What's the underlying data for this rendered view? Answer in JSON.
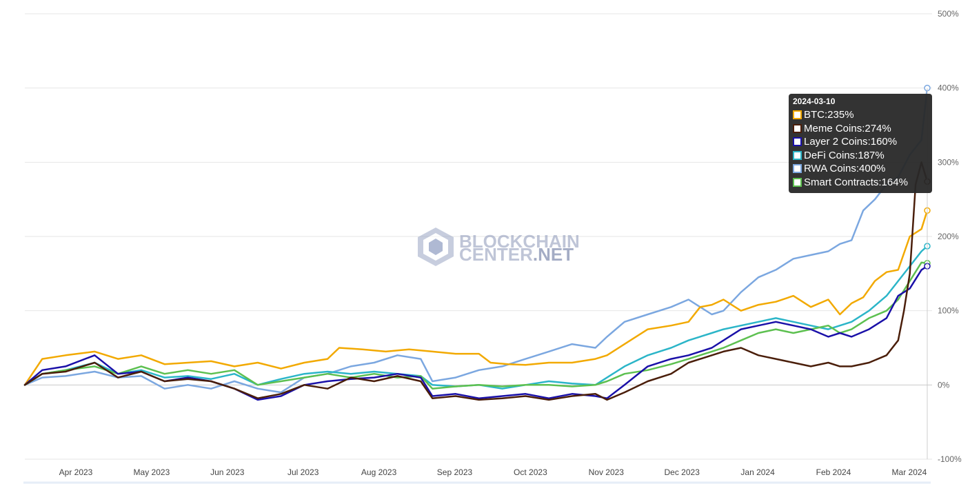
{
  "chart_data": {
    "type": "line",
    "ylim": [
      -100,
      500
    ],
    "y_ticks": [
      "500%",
      "400%",
      "300%",
      "200%",
      "100%",
      "0%",
      "-100%"
    ],
    "x_tick_labels": [
      "Apr 2023",
      "May 2023",
      "Jun 2023",
      "Jul 2023",
      "Aug 2023",
      "Sep 2023",
      "Oct 2023",
      "Nov 2023",
      "Dec 2023",
      "Jan 2024",
      "Feb 2024",
      "Mar 2024"
    ],
    "grid": true,
    "legend": "tooltip",
    "watermark": {
      "line1": "BLOCKCHAIN",
      "line2a": "CENTER",
      "line2b": ".NET"
    },
    "series": [
      {
        "name": "BTC",
        "color": "#F2A900",
        "tooltip_value": "235%",
        "values": [
          [
            0,
            0
          ],
          [
            3,
            35
          ],
          [
            7,
            40
          ],
          [
            12,
            45
          ],
          [
            16,
            35
          ],
          [
            20,
            40
          ],
          [
            24,
            28
          ],
          [
            28,
            30
          ],
          [
            32,
            32
          ],
          [
            36,
            25
          ],
          [
            40,
            30
          ],
          [
            44,
            22
          ],
          [
            48,
            30
          ],
          [
            52,
            35
          ],
          [
            54,
            50
          ],
          [
            58,
            48
          ],
          [
            62,
            45
          ],
          [
            66,
            48
          ],
          [
            70,
            45
          ],
          [
            74,
            42
          ],
          [
            78,
            42
          ],
          [
            80,
            30
          ],
          [
            83,
            28
          ],
          [
            86,
            27
          ],
          [
            90,
            30
          ],
          [
            94,
            30
          ],
          [
            98,
            35
          ],
          [
            100,
            40
          ],
          [
            103,
            55
          ],
          [
            107,
            75
          ],
          [
            111,
            80
          ],
          [
            114,
            85
          ],
          [
            116,
            105
          ],
          [
            118,
            108
          ],
          [
            120,
            115
          ],
          [
            123,
            100
          ],
          [
            126,
            108
          ],
          [
            129,
            112
          ],
          [
            132,
            120
          ],
          [
            135,
            105
          ],
          [
            138,
            115
          ],
          [
            140,
            95
          ],
          [
            142,
            110
          ],
          [
            144,
            118
          ],
          [
            146,
            140
          ],
          [
            148,
            152
          ],
          [
            150,
            155
          ],
          [
            152,
            200
          ],
          [
            154,
            210
          ],
          [
            155,
            235
          ]
        ]
      },
      {
        "name": "Meme Coins",
        "color": "#4A1E0A",
        "tooltip_value": "274%",
        "values": [
          [
            0,
            0
          ],
          [
            3,
            15
          ],
          [
            7,
            18
          ],
          [
            12,
            30
          ],
          [
            16,
            10
          ],
          [
            20,
            18
          ],
          [
            24,
            5
          ],
          [
            28,
            8
          ],
          [
            32,
            5
          ],
          [
            36,
            -5
          ],
          [
            40,
            -18
          ],
          [
            44,
            -12
          ],
          [
            48,
            0
          ],
          [
            52,
            -5
          ],
          [
            56,
            10
          ],
          [
            60,
            5
          ],
          [
            64,
            12
          ],
          [
            68,
            5
          ],
          [
            70,
            -18
          ],
          [
            74,
            -15
          ],
          [
            78,
            -20
          ],
          [
            82,
            -18
          ],
          [
            86,
            -15
          ],
          [
            90,
            -20
          ],
          [
            94,
            -15
          ],
          [
            98,
            -12
          ],
          [
            100,
            -20
          ],
          [
            103,
            -10
          ],
          [
            107,
            5
          ],
          [
            111,
            15
          ],
          [
            114,
            30
          ],
          [
            118,
            40
          ],
          [
            120,
            45
          ],
          [
            123,
            50
          ],
          [
            126,
            40
          ],
          [
            129,
            35
          ],
          [
            132,
            30
          ],
          [
            135,
            25
          ],
          [
            138,
            30
          ],
          [
            140,
            25
          ],
          [
            142,
            25
          ],
          [
            145,
            30
          ],
          [
            148,
            40
          ],
          [
            150,
            60
          ],
          [
            151,
            100
          ],
          [
            152,
            150
          ],
          [
            153,
            270
          ],
          [
            154,
            300
          ],
          [
            155,
            274
          ]
        ]
      },
      {
        "name": "Layer 2 Coins",
        "color": "#1A10A8",
        "tooltip_value": "160%",
        "values": [
          [
            0,
            0
          ],
          [
            3,
            20
          ],
          [
            7,
            25
          ],
          [
            12,
            40
          ],
          [
            16,
            15
          ],
          [
            20,
            18
          ],
          [
            24,
            5
          ],
          [
            28,
            10
          ],
          [
            32,
            5
          ],
          [
            36,
            -5
          ],
          [
            40,
            -20
          ],
          [
            44,
            -15
          ],
          [
            48,
            0
          ],
          [
            52,
            5
          ],
          [
            56,
            8
          ],
          [
            60,
            10
          ],
          [
            64,
            15
          ],
          [
            68,
            10
          ],
          [
            70,
            -15
          ],
          [
            74,
            -12
          ],
          [
            78,
            -18
          ],
          [
            82,
            -15
          ],
          [
            86,
            -12
          ],
          [
            90,
            -18
          ],
          [
            94,
            -12
          ],
          [
            98,
            -15
          ],
          [
            100,
            -18
          ],
          [
            103,
            0
          ],
          [
            107,
            25
          ],
          [
            111,
            35
          ],
          [
            114,
            40
          ],
          [
            118,
            50
          ],
          [
            120,
            60
          ],
          [
            123,
            75
          ],
          [
            126,
            80
          ],
          [
            129,
            85
          ],
          [
            132,
            80
          ],
          [
            135,
            75
          ],
          [
            138,
            65
          ],
          [
            140,
            70
          ],
          [
            142,
            65
          ],
          [
            145,
            75
          ],
          [
            148,
            90
          ],
          [
            150,
            120
          ],
          [
            152,
            130
          ],
          [
            154,
            155
          ],
          [
            155,
            160
          ]
        ]
      },
      {
        "name": "DeFi Coins",
        "color": "#2BB5C8",
        "tooltip_value": "187%",
        "values": [
          [
            0,
            0
          ],
          [
            3,
            15
          ],
          [
            7,
            20
          ],
          [
            12,
            30
          ],
          [
            16,
            15
          ],
          [
            20,
            20
          ],
          [
            24,
            10
          ],
          [
            28,
            12
          ],
          [
            32,
            8
          ],
          [
            36,
            15
          ],
          [
            40,
            0
          ],
          [
            44,
            8
          ],
          [
            48,
            15
          ],
          [
            52,
            18
          ],
          [
            56,
            15
          ],
          [
            60,
            18
          ],
          [
            64,
            15
          ],
          [
            68,
            12
          ],
          [
            70,
            0
          ],
          [
            74,
            -2
          ],
          [
            78,
            0
          ],
          [
            82,
            -5
          ],
          [
            86,
            0
          ],
          [
            90,
            5
          ],
          [
            94,
            2
          ],
          [
            98,
            0
          ],
          [
            100,
            10
          ],
          [
            103,
            25
          ],
          [
            107,
            40
          ],
          [
            111,
            50
          ],
          [
            114,
            60
          ],
          [
            118,
            70
          ],
          [
            120,
            75
          ],
          [
            123,
            80
          ],
          [
            126,
            85
          ],
          [
            129,
            90
          ],
          [
            132,
            85
          ],
          [
            135,
            80
          ],
          [
            138,
            75
          ],
          [
            140,
            80
          ],
          [
            142,
            85
          ],
          [
            145,
            100
          ],
          [
            148,
            120
          ],
          [
            150,
            140
          ],
          [
            152,
            160
          ],
          [
            154,
            180
          ],
          [
            155,
            187
          ]
        ]
      },
      {
        "name": "RWA Coins",
        "color": "#7BA7E0",
        "tooltip_value": "400%",
        "values": [
          [
            0,
            0
          ],
          [
            3,
            10
          ],
          [
            7,
            12
          ],
          [
            12,
            18
          ],
          [
            16,
            10
          ],
          [
            20,
            12
          ],
          [
            24,
            -5
          ],
          [
            28,
            0
          ],
          [
            32,
            -5
          ],
          [
            36,
            5
          ],
          [
            40,
            -5
          ],
          [
            44,
            -10
          ],
          [
            48,
            10
          ],
          [
            52,
            15
          ],
          [
            56,
            25
          ],
          [
            60,
            30
          ],
          [
            64,
            40
          ],
          [
            68,
            35
          ],
          [
            70,
            5
          ],
          [
            74,
            10
          ],
          [
            78,
            20
          ],
          [
            82,
            25
          ],
          [
            86,
            35
          ],
          [
            90,
            45
          ],
          [
            94,
            55
          ],
          [
            98,
            50
          ],
          [
            100,
            65
          ],
          [
            103,
            85
          ],
          [
            107,
            95
          ],
          [
            111,
            105
          ],
          [
            114,
            115
          ],
          [
            116,
            105
          ],
          [
            118,
            95
          ],
          [
            120,
            100
          ],
          [
            123,
            125
          ],
          [
            126,
            145
          ],
          [
            129,
            155
          ],
          [
            132,
            170
          ],
          [
            135,
            175
          ],
          [
            138,
            180
          ],
          [
            140,
            190
          ],
          [
            142,
            195
          ],
          [
            144,
            235
          ],
          [
            146,
            250
          ],
          [
            148,
            270
          ],
          [
            150,
            280
          ],
          [
            152,
            310
          ],
          [
            154,
            330
          ],
          [
            155,
            400
          ]
        ]
      },
      {
        "name": "Smart Contracts",
        "color": "#5DC050",
        "tooltip_value": "164%",
        "values": [
          [
            0,
            0
          ],
          [
            3,
            15
          ],
          [
            7,
            20
          ],
          [
            12,
            25
          ],
          [
            16,
            15
          ],
          [
            20,
            25
          ],
          [
            24,
            15
          ],
          [
            28,
            20
          ],
          [
            32,
            15
          ],
          [
            36,
            20
          ],
          [
            40,
            0
          ],
          [
            44,
            5
          ],
          [
            48,
            10
          ],
          [
            52,
            15
          ],
          [
            56,
            10
          ],
          [
            60,
            15
          ],
          [
            64,
            10
          ],
          [
            68,
            12
          ],
          [
            70,
            -5
          ],
          [
            74,
            -2
          ],
          [
            78,
            0
          ],
          [
            82,
            -2
          ],
          [
            86,
            0
          ],
          [
            90,
            0
          ],
          [
            94,
            -2
          ],
          [
            98,
            0
          ],
          [
            100,
            5
          ],
          [
            103,
            15
          ],
          [
            107,
            20
          ],
          [
            111,
            28
          ],
          [
            114,
            35
          ],
          [
            118,
            45
          ],
          [
            120,
            50
          ],
          [
            123,
            60
          ],
          [
            126,
            70
          ],
          [
            129,
            75
          ],
          [
            132,
            70
          ],
          [
            135,
            75
          ],
          [
            138,
            80
          ],
          [
            140,
            70
          ],
          [
            142,
            75
          ],
          [
            145,
            90
          ],
          [
            148,
            100
          ],
          [
            150,
            115
          ],
          [
            152,
            140
          ],
          [
            154,
            165
          ],
          [
            155,
            164
          ]
        ]
      }
    ]
  },
  "tooltip": {
    "date": "2024-03-10"
  }
}
